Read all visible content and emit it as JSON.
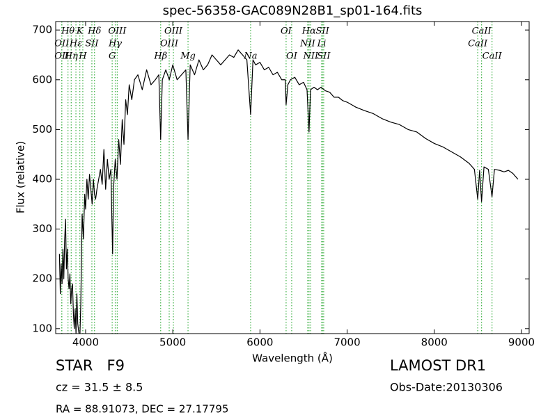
{
  "chart_data": {
    "type": "line",
    "title": "spec-56358-GAC089N28B1_sp01-164.fits",
    "x_label": "Wavelength (Å)",
    "y_label": "Flux (relative)",
    "xlim": [
      3657,
      9088
    ],
    "ylim": [
      90,
      717
    ],
    "xticks": [
      4000,
      5000,
      6000,
      7000,
      8000,
      9000
    ],
    "yticks": [
      100,
      200,
      300,
      400,
      500,
      600,
      700
    ],
    "color": "#000000",
    "line_label_color": "#3cb043",
    "x": [
      3700,
      3710,
      3720,
      3730,
      3740,
      3750,
      3760,
      3770,
      3780,
      3790,
      3800,
      3810,
      3820,
      3830,
      3840,
      3850,
      3860,
      3870,
      3880,
      3890,
      3900,
      3910,
      3920,
      3934,
      3945,
      3960,
      3975,
      3990,
      4000,
      4015,
      4030,
      4045,
      4060,
      4075,
      4090,
      4102,
      4115,
      4130,
      4150,
      4170,
      4190,
      4210,
      4230,
      4250,
      4270,
      4290,
      4300,
      4310,
      4320,
      4340,
      4360,
      4380,
      4400,
      4420,
      4440,
      4460,
      4480,
      4500,
      4530,
      4560,
      4600,
      4650,
      4700,
      4750,
      4800,
      4840,
      4861,
      4880,
      4920,
      4960,
      5000,
      5050,
      5100,
      5150,
      5175,
      5200,
      5250,
      5300,
      5350,
      5400,
      5450,
      5500,
      5550,
      5600,
      5650,
      5700,
      5750,
      5800,
      5850,
      5893,
      5920,
      5950,
      6000,
      6050,
      6100,
      6150,
      6200,
      6250,
      6290,
      6300,
      6320,
      6350,
      6400,
      6450,
      6500,
      6540,
      6563,
      6580,
      6620,
      6660,
      6700,
      6750,
      6800,
      6850,
      6900,
      6950,
      7000,
      7100,
      7200,
      7300,
      7400,
      7500,
      7600,
      7700,
      7800,
      7900,
      8000,
      8100,
      8200,
      8300,
      8400,
      8460,
      8498,
      8520,
      8542,
      8570,
      8620,
      8662,
      8690,
      8750,
      8800,
      8850,
      8900,
      8960
    ],
    "values": [
      250,
      170,
      230,
      190,
      260,
      200,
      280,
      320,
      220,
      260,
      200,
      180,
      210,
      150,
      180,
      190,
      130,
      100,
      140,
      90,
      170,
      110,
      95,
      80,
      150,
      330,
      280,
      370,
      340,
      400,
      360,
      410,
      380,
      350,
      400,
      370,
      360,
      380,
      400,
      420,
      390,
      460,
      380,
      440,
      400,
      420,
      330,
      250,
      380,
      440,
      400,
      480,
      430,
      520,
      470,
      560,
      530,
      590,
      560,
      600,
      610,
      580,
      620,
      590,
      600,
      610,
      480,
      600,
      620,
      600,
      630,
      600,
      610,
      620,
      480,
      630,
      610,
      640,
      620,
      630,
      650,
      640,
      630,
      640,
      650,
      645,
      660,
      650,
      640,
      530,
      640,
      630,
      635,
      620,
      625,
      610,
      615,
      600,
      600,
      550,
      590,
      600,
      605,
      590,
      595,
      580,
      495,
      580,
      585,
      580,
      585,
      578,
      575,
      565,
      565,
      558,
      555,
      545,
      538,
      532,
      522,
      515,
      510,
      500,
      495,
      482,
      472,
      465,
      455,
      445,
      432,
      420,
      360,
      418,
      355,
      425,
      420,
      365,
      420,
      418,
      415,
      418,
      412,
      400
    ],
    "line_labels": [
      [
        {
          "text": "Hθ",
          "x": 3798
        },
        {
          "text": "K",
          "x": 3934
        },
        {
          "text": "Hδ",
          "x": 4102
        },
        {
          "text": "OIII",
          "x": 4363
        },
        {
          "text": "OIII",
          "x": 5007
        },
        {
          "text": "OI",
          "x": 6300
        },
        {
          "text": "Hα",
          "x": 6563
        },
        {
          "text": "SII",
          "x": 6717
        },
        {
          "text": "CaII",
          "x": 8542
        }
      ],
      [
        {
          "text": "OII",
          "x": 3727
        },
        {
          "text": "Hε",
          "x": 3889
        },
        {
          "text": "SII",
          "x": 4072
        },
        {
          "text": "Hγ",
          "x": 4340
        },
        {
          "text": "OIII",
          "x": 4959
        },
        {
          "text": "NII",
          "x": 6548
        },
        {
          "text": "Li",
          "x": 6708
        },
        {
          "text": "CaII",
          "x": 8498
        }
      ],
      [
        {
          "text": "OII",
          "x": 3727
        },
        {
          "text": "Hη",
          "x": 3835
        },
        {
          "text": "H",
          "x": 3968
        },
        {
          "text": "G",
          "x": 4305
        },
        {
          "text": "Hβ",
          "x": 4861
        },
        {
          "text": "Mg",
          "x": 5175
        },
        {
          "text": "Na",
          "x": 5893
        },
        {
          "text": "OI",
          "x": 6364
        },
        {
          "text": "NII",
          "x": 6583
        },
        {
          "text": "SII",
          "x": 6731
        },
        {
          "text": "CaII",
          "x": 8662
        }
      ]
    ]
  },
  "info": {
    "object": "STAR   F9",
    "survey": "LAMOST DR1",
    "redshift": "cz = 31.5 ± 8.5",
    "obs_date": "Obs-Date:20130306",
    "coords": "RA = 88.91073, DEC = 27.17795"
  }
}
